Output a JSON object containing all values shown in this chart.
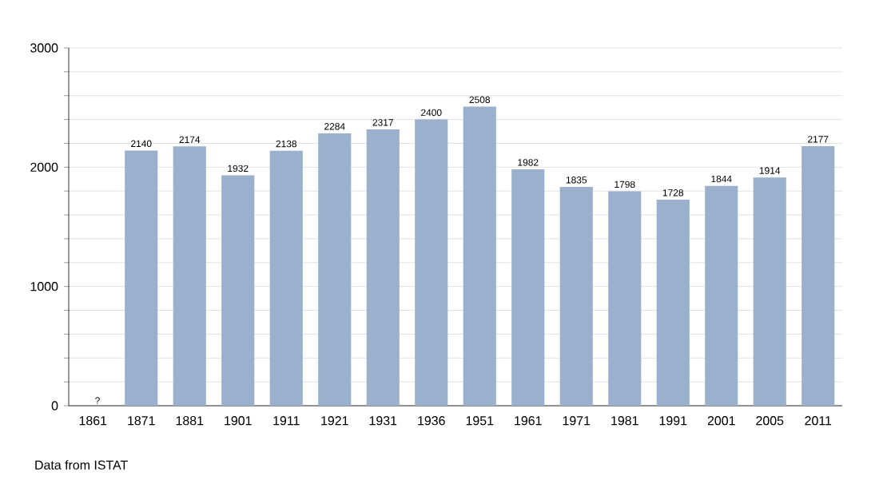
{
  "chart_data": {
    "type": "bar",
    "categories": [
      "1861",
      "1871",
      "1881",
      "1901",
      "1911",
      "1921",
      "1931",
      "1936",
      "1951",
      "1961",
      "1971",
      "1981",
      "1991",
      "2001",
      "2005",
      "2011"
    ],
    "values": [
      null,
      2140,
      2174,
      1932,
      2138,
      2284,
      2317,
      2400,
      2508,
      1982,
      1835,
      1798,
      1728,
      1844,
      1914,
      2177
    ],
    "value_labels": [
      "?",
      "2140",
      "2174",
      "1932",
      "2138",
      "2284",
      "2317",
      "2400",
      "2508",
      "1982",
      "1835",
      "1798",
      "1728",
      "1844",
      "1914",
      "2177"
    ],
    "color": "#9ab0cc",
    "ylim": [
      0,
      3000
    ],
    "yticks": [
      0,
      {
        "value": 200,
        "label": null
      },
      {
        "value": 400,
        "label": null
      },
      {
        "value": 600,
        "label": null
      },
      {
        "value": 800,
        "label": null
      },
      1000,
      {
        "value": 1200,
        "label": null
      },
      {
        "value": 1400,
        "label": null
      },
      {
        "value": 1600,
        "label": null
      },
      {
        "value": 1800,
        "label": null
      },
      2000,
      {
        "value": 2200,
        "label": null
      },
      {
        "value": 2400,
        "label": null
      },
      {
        "value": 2600,
        "label": null
      },
      {
        "value": 2800,
        "label": null
      },
      3000
    ],
    "grid": "y",
    "annotations": [
      "Data from ISTAT"
    ]
  }
}
